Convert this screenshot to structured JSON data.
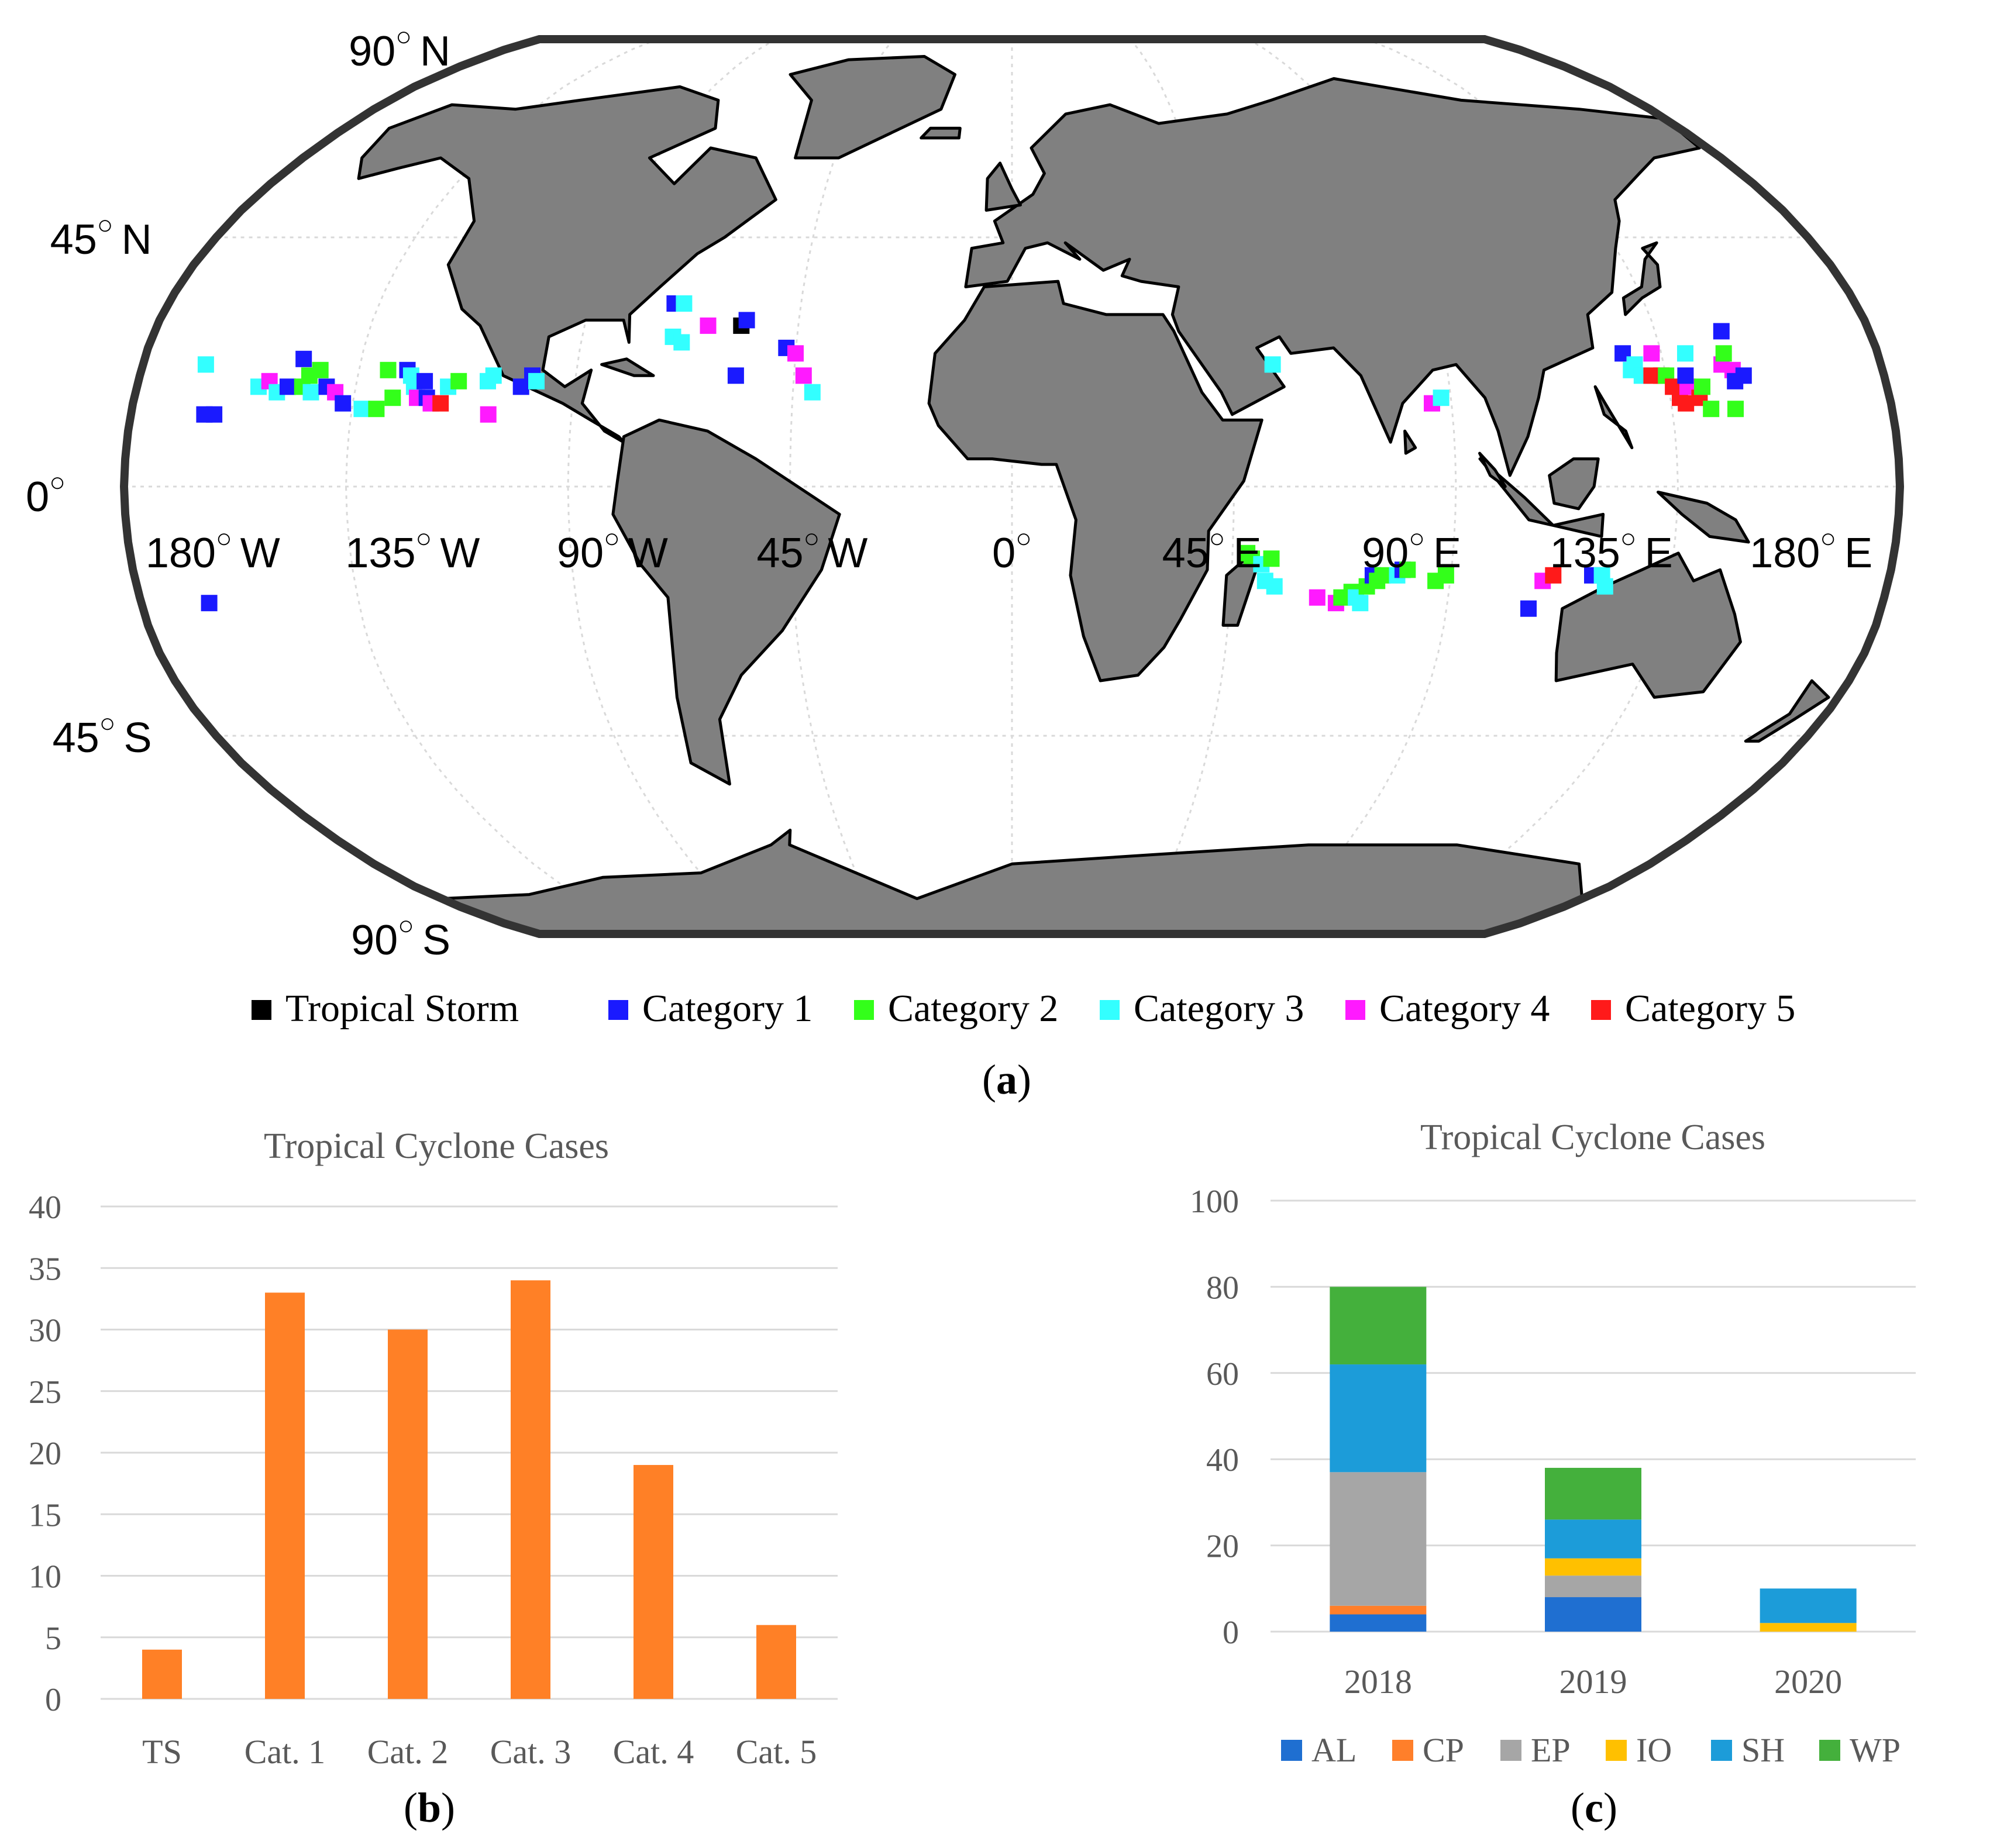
{
  "map": {
    "lat_labels": [
      {
        "text": "90",
        "hemi": "N",
        "lat": 90
      },
      {
        "text": "45",
        "hemi": "N",
        "lat": 45
      },
      {
        "text": "0",
        "hemi": "",
        "lat": 0
      },
      {
        "text": "45",
        "hemi": "S",
        "lat": -45
      },
      {
        "text": "90",
        "hemi": "S",
        "lat": -90
      }
    ],
    "lon_labels": [
      {
        "text": "180",
        "hemi": "W",
        "lon": -180
      },
      {
        "text": "135",
        "hemi": "W",
        "lon": -135
      },
      {
        "text": "90",
        "hemi": "W",
        "lon": -90
      },
      {
        "text": "45",
        "hemi": "W",
        "lon": -45
      },
      {
        "text": "0",
        "hemi": "",
        "lon": 0
      },
      {
        "text": "45",
        "hemi": "E",
        "lon": 45
      },
      {
        "text": "90",
        "hemi": "E",
        "lon": 90
      },
      {
        "text": "135",
        "hemi": "E",
        "lon": 135
      },
      {
        "text": "180",
        "hemi": "E",
        "lon": 180
      }
    ],
    "legend": [
      {
        "label": "Tropical  Storm",
        "color": "#000000"
      },
      {
        "label": "Category 1",
        "color": "#1a1aff"
      },
      {
        "label": "Category 2",
        "color": "#33ff1a"
      },
      {
        "label": "Category 3",
        "color": "#33ffff"
      },
      {
        "label": "Category 4",
        "color": "#ff1aff"
      },
      {
        "label": "Category 5",
        "color": "#ff1a1a"
      }
    ],
    "land_color": "#808080",
    "points": [
      {
        "lon": -167,
        "lat": 22,
        "cat": 3
      },
      {
        "lon": -165,
        "lat": 13,
        "cat": 1
      },
      {
        "lon": -163,
        "lat": 13,
        "cat": 1
      },
      {
        "lon": -166,
        "lat": -21,
        "cat": 1
      },
      {
        "lon": -155,
        "lat": 18,
        "cat": 3
      },
      {
        "lon": -153,
        "lat": 19,
        "cat": 4
      },
      {
        "lon": -151,
        "lat": 17,
        "cat": 3
      },
      {
        "lon": -149,
        "lat": 18,
        "cat": 1
      },
      {
        "lon": -147,
        "lat": 23,
        "cat": 1
      },
      {
        "lon": -146,
        "lat": 18,
        "cat": 2
      },
      {
        "lon": -145,
        "lat": 20,
        "cat": 2
      },
      {
        "lon": -144,
        "lat": 17,
        "cat": 3
      },
      {
        "lon": -143,
        "lat": 21,
        "cat": 2
      },
      {
        "lon": -141,
        "lat": 18,
        "cat": 1
      },
      {
        "lon": -139,
        "lat": 17,
        "cat": 4
      },
      {
        "lon": -137,
        "lat": 15,
        "cat": 1
      },
      {
        "lon": -133,
        "lat": 14,
        "cat": 3
      },
      {
        "lon": -130,
        "lat": 14,
        "cat": 2
      },
      {
        "lon": -129,
        "lat": 21,
        "cat": 2
      },
      {
        "lon": -127,
        "lat": 16,
        "cat": 2
      },
      {
        "lon": -125,
        "lat": 21,
        "cat": 1
      },
      {
        "lon": -124,
        "lat": 20,
        "cat": 3
      },
      {
        "lon": -123,
        "lat": 18,
        "cat": 3
      },
      {
        "lon": -122,
        "lat": 16,
        "cat": 4
      },
      {
        "lon": -121,
        "lat": 19,
        "cat": 1
      },
      {
        "lon": -120,
        "lat": 16,
        "cat": 1
      },
      {
        "lon": -119,
        "lat": 15,
        "cat": 4
      },
      {
        "lon": -117,
        "lat": 15,
        "cat": 5
      },
      {
        "lon": -116,
        "lat": 18,
        "cat": 3
      },
      {
        "lon": -114,
        "lat": 19,
        "cat": 2
      },
      {
        "lon": -108,
        "lat": 19,
        "cat": 3
      },
      {
        "lon": -107,
        "lat": 20,
        "cat": 3
      },
      {
        "lon": -107,
        "lat": 13,
        "cat": 4
      },
      {
        "lon": -101,
        "lat": 18,
        "cat": 1
      },
      {
        "lon": -99,
        "lat": 20,
        "cat": 1
      },
      {
        "lon": -98,
        "lat": 19,
        "cat": 3
      },
      {
        "lon": -72,
        "lat": 33,
        "cat": 1
      },
      {
        "lon": -70,
        "lat": 33,
        "cat": 3
      },
      {
        "lon": -71,
        "lat": 27,
        "cat": 3
      },
      {
        "lon": -69,
        "lat": 26,
        "cat": 3
      },
      {
        "lon": -64,
        "lat": 29,
        "cat": 4
      },
      {
        "lon": -57,
        "lat": 29,
        "cat": 0
      },
      {
        "lon": -56,
        "lat": 30,
        "cat": 1
      },
      {
        "lon": -57,
        "lat": 20,
        "cat": 1
      },
      {
        "lon": -47,
        "lat": 25,
        "cat": 1
      },
      {
        "lon": -45,
        "lat": 24,
        "cat": 4
      },
      {
        "lon": -43,
        "lat": 20,
        "cat": 4
      },
      {
        "lon": -41,
        "lat": 17,
        "cat": 3
      },
      {
        "lon": 54,
        "lat": 22,
        "cat": 3
      },
      {
        "lon": 48,
        "lat": -12,
        "cat": 2
      },
      {
        "lon": 49,
        "lat": -13,
        "cat": 2
      },
      {
        "lon": 51,
        "lat": -14,
        "cat": 3
      },
      {
        "lon": 52,
        "lat": -17,
        "cat": 3
      },
      {
        "lon": 53,
        "lat": -13,
        "cat": 2
      },
      {
        "lon": 54,
        "lat": -18,
        "cat": 3
      },
      {
        "lon": 63,
        "lat": -20,
        "cat": 4
      },
      {
        "lon": 67,
        "lat": -21,
        "cat": 4
      },
      {
        "lon": 68,
        "lat": -20,
        "cat": 2
      },
      {
        "lon": 70,
        "lat": -19,
        "cat": 2
      },
      {
        "lon": 71,
        "lat": -20,
        "cat": 3
      },
      {
        "lon": 72,
        "lat": -21,
        "cat": 3
      },
      {
        "lon": 73,
        "lat": -18,
        "cat": 2
      },
      {
        "lon": 74,
        "lat": -16,
        "cat": 1
      },
      {
        "lon": 75,
        "lat": -17,
        "cat": 2
      },
      {
        "lon": 76,
        "lat": -16,
        "cat": 2
      },
      {
        "lon": 79,
        "lat": -16,
        "cat": 3
      },
      {
        "lon": 80,
        "lat": -15,
        "cat": 1
      },
      {
        "lon": 81,
        "lat": -15,
        "cat": 2
      },
      {
        "lon": 87,
        "lat": -17,
        "cat": 2
      },
      {
        "lon": 89,
        "lat": -16,
        "cat": 2
      },
      {
        "lon": 86,
        "lat": 15,
        "cat": 4
      },
      {
        "lon": 88,
        "lat": 16,
        "cat": 3
      },
      {
        "lon": 107,
        "lat": -22,
        "cat": 1
      },
      {
        "lon": 109,
        "lat": -17,
        "cat": 4
      },
      {
        "lon": 111,
        "lat": -16,
        "cat": 5
      },
      {
        "lon": 119,
        "lat": -16,
        "cat": 1
      },
      {
        "lon": 121,
        "lat": -16,
        "cat": 3
      },
      {
        "lon": 122,
        "lat": -18,
        "cat": 3
      },
      {
        "lon": 127,
        "lat": 24,
        "cat": 1
      },
      {
        "lon": 128,
        "lat": 21,
        "cat": 3
      },
      {
        "lon": 129,
        "lat": 22,
        "cat": 3
      },
      {
        "lon": 130,
        "lat": 20,
        "cat": 3
      },
      {
        "lon": 132,
        "lat": 20,
        "cat": 5
      },
      {
        "lon": 133,
        "lat": 24,
        "cat": 4
      },
      {
        "lon": 134,
        "lat": 20,
        "cat": 5
      },
      {
        "lon": 135,
        "lat": 20,
        "cat": 2
      },
      {
        "lon": 136,
        "lat": 18,
        "cat": 5
      },
      {
        "lon": 137,
        "lat": 16,
        "cat": 5
      },
      {
        "lon": 138,
        "lat": 15,
        "cat": 5
      },
      {
        "lon": 139,
        "lat": 18,
        "cat": 4
      },
      {
        "lon": 139,
        "lat": 20,
        "cat": 1
      },
      {
        "lon": 140,
        "lat": 24,
        "cat": 3
      },
      {
        "lon": 141,
        "lat": 16,
        "cat": 5
      },
      {
        "lon": 142,
        "lat": 18,
        "cat": 2
      },
      {
        "lon": 143,
        "lat": 14,
        "cat": 2
      },
      {
        "lon": 147,
        "lat": 22,
        "cat": 4
      },
      {
        "lon": 148,
        "lat": 24,
        "cat": 2
      },
      {
        "lon": 149,
        "lat": 21,
        "cat": 4
      },
      {
        "lon": 149,
        "lat": 19,
        "cat": 1
      },
      {
        "lon": 149,
        "lat": 28,
        "cat": 1
      },
      {
        "lon": 151,
        "lat": 20,
        "cat": 1
      },
      {
        "lon": 148,
        "lat": 14,
        "cat": 2
      }
    ]
  },
  "labels": {
    "a": "a",
    "b": "b",
    "c": "c"
  },
  "chart_data": [
    {
      "type": "bar",
      "title": "Tropical Cyclone Cases",
      "categories": [
        "TS",
        "Cat. 1",
        "Cat. 2",
        "Cat. 3",
        "Cat. 4",
        "Cat. 5"
      ],
      "values": [
        4,
        33,
        30,
        34,
        19,
        6
      ],
      "ylim": [
        0,
        40
      ],
      "yticks": [
        0,
        5,
        10,
        15,
        20,
        25,
        30,
        35,
        40
      ],
      "color": "#ff8026",
      "grid": true
    },
    {
      "type": "stacked-bar",
      "title": "Tropical Cyclone Cases",
      "categories": [
        "2018",
        "2019",
        "2020"
      ],
      "ylim": [
        0,
        100
      ],
      "yticks": [
        0,
        20,
        40,
        60,
        80,
        100
      ],
      "grid": true,
      "legend_position": "bottom",
      "series": [
        {
          "name": "AL",
          "color": "#1f6fd1",
          "values": [
            4,
            8,
            0
          ]
        },
        {
          "name": "CP",
          "color": "#ff7f2a",
          "values": [
            2,
            0,
            0
          ]
        },
        {
          "name": "EP",
          "color": "#a6a6a6",
          "values": [
            31,
            5,
            0
          ]
        },
        {
          "name": "IO",
          "color": "#ffc000",
          "values": [
            0,
            4,
            2
          ]
        },
        {
          "name": "SH",
          "color": "#1c9cd9",
          "values": [
            25,
            9,
            8
          ]
        },
        {
          "name": "WP",
          "color": "#44b03c",
          "values": [
            18,
            12,
            0
          ]
        }
      ]
    }
  ]
}
